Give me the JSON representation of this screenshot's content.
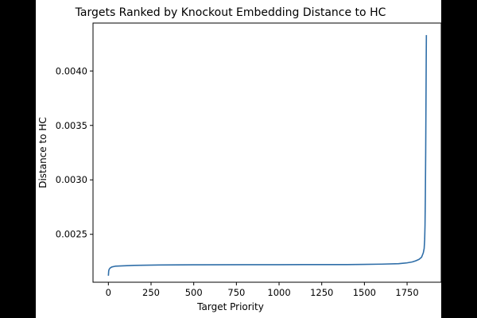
{
  "chart_data": {
    "type": "line",
    "title": "Targets Ranked by Knockout Embedding Distance to HC",
    "xlabel": "Target Priority",
    "ylabel": "Distance to HC",
    "xlim": [
      -90,
      1950
    ],
    "ylim": [
      0.00206,
      0.00444
    ],
    "x_ticks": [
      0,
      250,
      500,
      750,
      1000,
      1250,
      1500,
      1750
    ],
    "y_ticks": [
      0.0025,
      0.003,
      0.0035,
      0.004
    ],
    "x_tick_labels": [
      "0",
      "250",
      "500",
      "750",
      "1000",
      "1250",
      "1500",
      "1750"
    ],
    "y_tick_labels": [
      "0.0025",
      "0.0030",
      "0.0035",
      "0.0040"
    ],
    "grid": false,
    "legend": "none",
    "series": [
      {
        "color": "#2f6ea8",
        "x": [
          0,
          2,
          5,
          10,
          20,
          40,
          80,
          150,
          300,
          500,
          800,
          1000,
          1200,
          1400,
          1500,
          1600,
          1700,
          1750,
          1780,
          1800,
          1820,
          1835,
          1845,
          1850,
          1853,
          1855,
          1857,
          1859,
          1861,
          1862,
          1863
        ],
        "y": [
          0.00212,
          0.002165,
          0.00218,
          0.00219,
          0.0022,
          0.002207,
          0.00221,
          0.002215,
          0.002218,
          0.00222,
          0.002221,
          0.002221,
          0.002222,
          0.002222,
          0.002224,
          0.002226,
          0.00223,
          0.002238,
          0.002246,
          0.002256,
          0.00227,
          0.00229,
          0.00233,
          0.00237,
          0.00245,
          0.00258,
          0.00285,
          0.00325,
          0.0038,
          0.0041,
          0.00433
        ]
      }
    ]
  }
}
